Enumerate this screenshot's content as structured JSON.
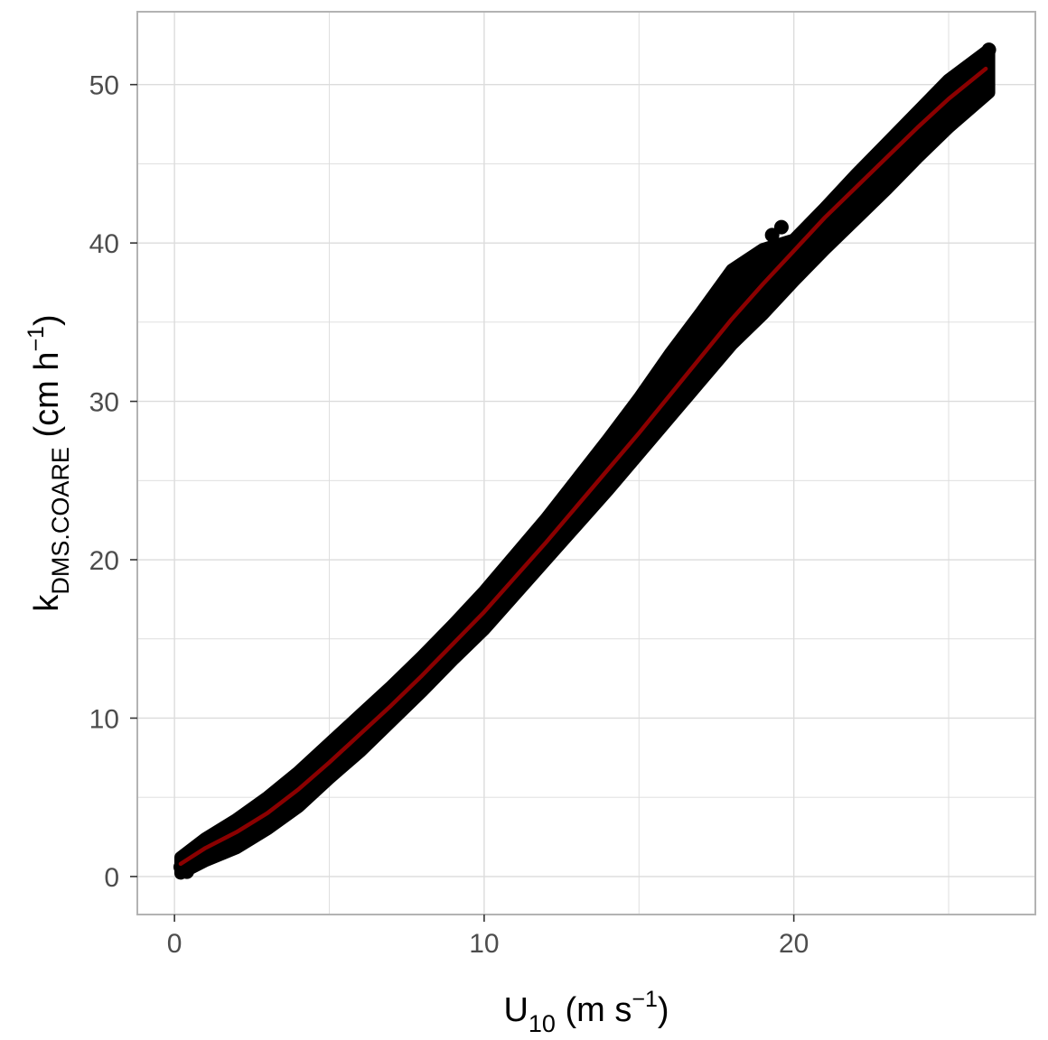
{
  "chart_data": {
    "type": "scatter",
    "xlabel": {
      "base": "U",
      "sub": "10",
      "rest": " (m s",
      "sup": "−1",
      "close": ")"
    },
    "ylabel": {
      "base": "k",
      "sub": "DMS.COARE",
      "rest": " (cm h",
      "sup": "−1",
      "close": ")"
    },
    "xlim": [
      -1.2,
      27.8
    ],
    "ylim": [
      -2.4,
      54.6
    ],
    "x_ticks": [
      0,
      10,
      20
    ],
    "x_tick_labels": [
      "0",
      "10",
      "20"
    ],
    "y_ticks": [
      0,
      10,
      20,
      30,
      40,
      50
    ],
    "y_tick_labels": [
      "0",
      "10",
      "20",
      "30",
      "40",
      "50"
    ],
    "grid": true,
    "legend": "none",
    "colors": {
      "points": "#000000",
      "fit_line": "#8b0000",
      "grid": "#dcdcdc",
      "panel_border": "#b3b3b3"
    },
    "series": [
      {
        "kind": "points",
        "description_points": [
          [
            0.2,
            0.6
          ],
          [
            0.4,
            0.3
          ],
          [
            0.5,
            1.5
          ],
          [
            1.0,
            2.0
          ],
          [
            2.0,
            3.0
          ],
          [
            3.0,
            4.5
          ],
          [
            4.0,
            6.0
          ],
          [
            5.0,
            7.8
          ],
          [
            6.0,
            9.5
          ],
          [
            7.0,
            11.3
          ],
          [
            8.0,
            13.0
          ],
          [
            9.0,
            15.0
          ],
          [
            10.0,
            17.0
          ],
          [
            11.0,
            19.5
          ],
          [
            12.0,
            21.8
          ],
          [
            13.0,
            24.0
          ],
          [
            14.0,
            26.5
          ],
          [
            15.0,
            29.0
          ],
          [
            16.0,
            31.5
          ],
          [
            17.0,
            34.0
          ],
          [
            18.0,
            37.5
          ],
          [
            19.0,
            39.5
          ],
          [
            19.3,
            40.5
          ],
          [
            19.6,
            41.0
          ],
          [
            20.0,
            38.5
          ],
          [
            21.0,
            40.8
          ],
          [
            22.0,
            43.0
          ],
          [
            23.0,
            45.5
          ],
          [
            24.0,
            47.5
          ],
          [
            25.0,
            49.5
          ],
          [
            26.0,
            51.5
          ],
          [
            26.3,
            52.2
          ]
        ],
        "band_upper": [
          [
            0.2,
            1.2
          ],
          [
            1,
            2.4
          ],
          [
            2,
            3.6
          ],
          [
            3,
            5.0
          ],
          [
            4,
            6.6
          ],
          [
            5,
            8.4
          ],
          [
            6,
            10.2
          ],
          [
            7,
            12.0
          ],
          [
            8,
            13.9
          ],
          [
            9,
            15.9
          ],
          [
            10,
            18.0
          ],
          [
            11,
            20.3
          ],
          [
            12,
            22.6
          ],
          [
            13,
            25.1
          ],
          [
            14,
            27.6
          ],
          [
            15,
            30.2
          ],
          [
            16,
            33.0
          ],
          [
            17,
            35.6
          ],
          [
            18,
            38.3
          ],
          [
            19,
            39.6
          ],
          [
            20,
            40.2
          ],
          [
            21,
            42.2
          ],
          [
            22,
            44.3
          ],
          [
            23,
            46.3
          ],
          [
            24,
            48.3
          ],
          [
            25,
            50.3
          ],
          [
            26.3,
            52.2
          ]
        ],
        "band_lower": [
          [
            0.2,
            0.2
          ],
          [
            1,
            1.0
          ],
          [
            2,
            1.8
          ],
          [
            3,
            3.0
          ],
          [
            4,
            4.4
          ],
          [
            5,
            6.2
          ],
          [
            6,
            7.9
          ],
          [
            7,
            9.8
          ],
          [
            8,
            11.7
          ],
          [
            9,
            13.7
          ],
          [
            10,
            15.6
          ],
          [
            11,
            17.8
          ],
          [
            12,
            20.0
          ],
          [
            13,
            22.2
          ],
          [
            14,
            24.4
          ],
          [
            15,
            26.7
          ],
          [
            16,
            29.0
          ],
          [
            17,
            31.3
          ],
          [
            18,
            33.6
          ],
          [
            19,
            35.5
          ],
          [
            20,
            37.6
          ],
          [
            21,
            39.6
          ],
          [
            22,
            41.5
          ],
          [
            23,
            43.4
          ],
          [
            24,
            45.4
          ],
          [
            25,
            47.3
          ],
          [
            26.3,
            49.5
          ]
        ]
      },
      {
        "kind": "line",
        "values": [
          [
            0.2,
            0.8
          ],
          [
            1,
            1.8
          ],
          [
            2,
            2.8
          ],
          [
            3,
            4.0
          ],
          [
            4,
            5.5
          ],
          [
            5,
            7.2
          ],
          [
            6,
            9.0
          ],
          [
            7,
            10.8
          ],
          [
            8,
            12.7
          ],
          [
            9,
            14.7
          ],
          [
            10,
            16.7
          ],
          [
            11,
            18.9
          ],
          [
            12,
            21.1
          ],
          [
            13,
            23.4
          ],
          [
            14,
            25.7
          ],
          [
            15,
            28.0
          ],
          [
            16,
            30.4
          ],
          [
            17,
            32.8
          ],
          [
            18,
            35.2
          ],
          [
            19,
            37.4
          ],
          [
            20,
            39.5
          ],
          [
            21,
            41.6
          ],
          [
            22,
            43.5
          ],
          [
            23,
            45.4
          ],
          [
            24,
            47.3
          ],
          [
            25,
            49.1
          ],
          [
            26.2,
            51.0
          ]
        ]
      }
    ]
  }
}
